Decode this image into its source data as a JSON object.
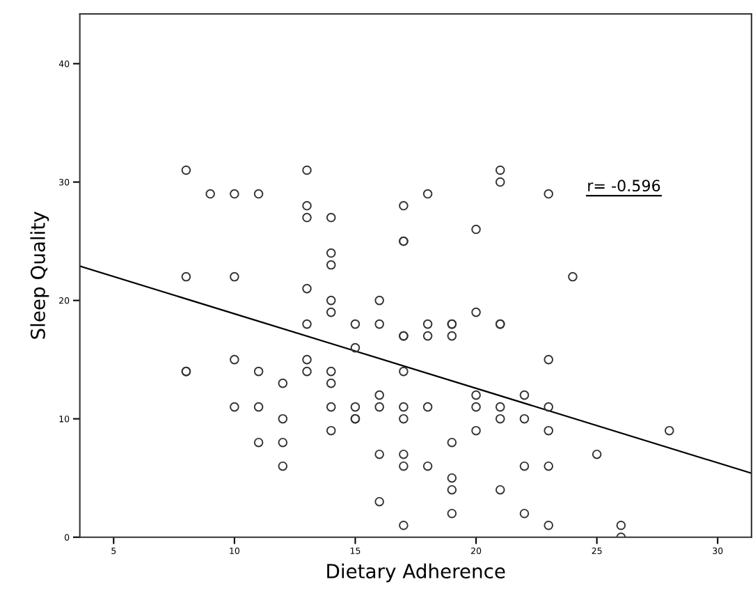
{
  "chart_data": {
    "type": "scatter",
    "xlabel": "Dietary Adherence",
    "ylabel": "Sleep Quality",
    "xlim": [
      3.6,
      31.4
    ],
    "ylim": [
      0,
      44.2
    ],
    "xticks": [
      5,
      10,
      15,
      20,
      25,
      30
    ],
    "yticks": [
      0,
      10,
      20,
      30,
      40
    ],
    "grid": false,
    "legend": false,
    "marker": "circle",
    "annotations": [
      "r= -0.596"
    ],
    "series": [
      {
        "color": "#333333",
        "x": [
          8,
          8,
          8,
          8,
          9,
          10,
          10,
          10,
          10,
          11,
          11,
          11,
          11,
          12,
          12,
          12,
          12,
          13,
          13,
          13,
          13,
          13,
          13,
          13,
          14,
          14,
          14,
          14,
          14,
          14,
          14,
          14,
          14,
          15,
          15,
          15,
          15,
          15,
          16,
          16,
          16,
          16,
          16,
          16,
          17,
          17,
          17,
          17,
          17,
          17,
          17,
          17,
          17,
          17,
          17,
          18,
          18,
          18,
          18,
          18,
          19,
          19,
          19,
          19,
          19,
          19,
          19,
          20,
          20,
          20,
          20,
          20,
          21,
          21,
          21,
          21,
          21,
          21,
          21,
          22,
          22,
          22,
          22,
          23,
          23,
          23,
          23,
          23,
          23,
          24,
          25,
          26,
          26,
          28
        ],
        "values": [
          31,
          22,
          14,
          14,
          29,
          29,
          22,
          15,
          11,
          29,
          14,
          11,
          8,
          13,
          10,
          8,
          6,
          31,
          28,
          27,
          21,
          18,
          15,
          14,
          27,
          24,
          23,
          20,
          19,
          14,
          13,
          11,
          9,
          18,
          16,
          11,
          10,
          10,
          20,
          18,
          12,
          11,
          7,
          3,
          28,
          25,
          25,
          17,
          17,
          14,
          11,
          10,
          7,
          6,
          1,
          29,
          18,
          17,
          11,
          6,
          18,
          18,
          17,
          8,
          5,
          4,
          2,
          26,
          19,
          12,
          11,
          9,
          31,
          30,
          18,
          18,
          11,
          10,
          4,
          12,
          10,
          6,
          2,
          29,
          15,
          11,
          9,
          6,
          1,
          22,
          7,
          1,
          0,
          9
        ]
      },
      {
        "type": "line",
        "color": "#000000",
        "x": [
          3.6,
          31.4
        ],
        "values": [
          22.9,
          5.4
        ],
        "marker": "none",
        "line_style": "solid"
      }
    ]
  }
}
